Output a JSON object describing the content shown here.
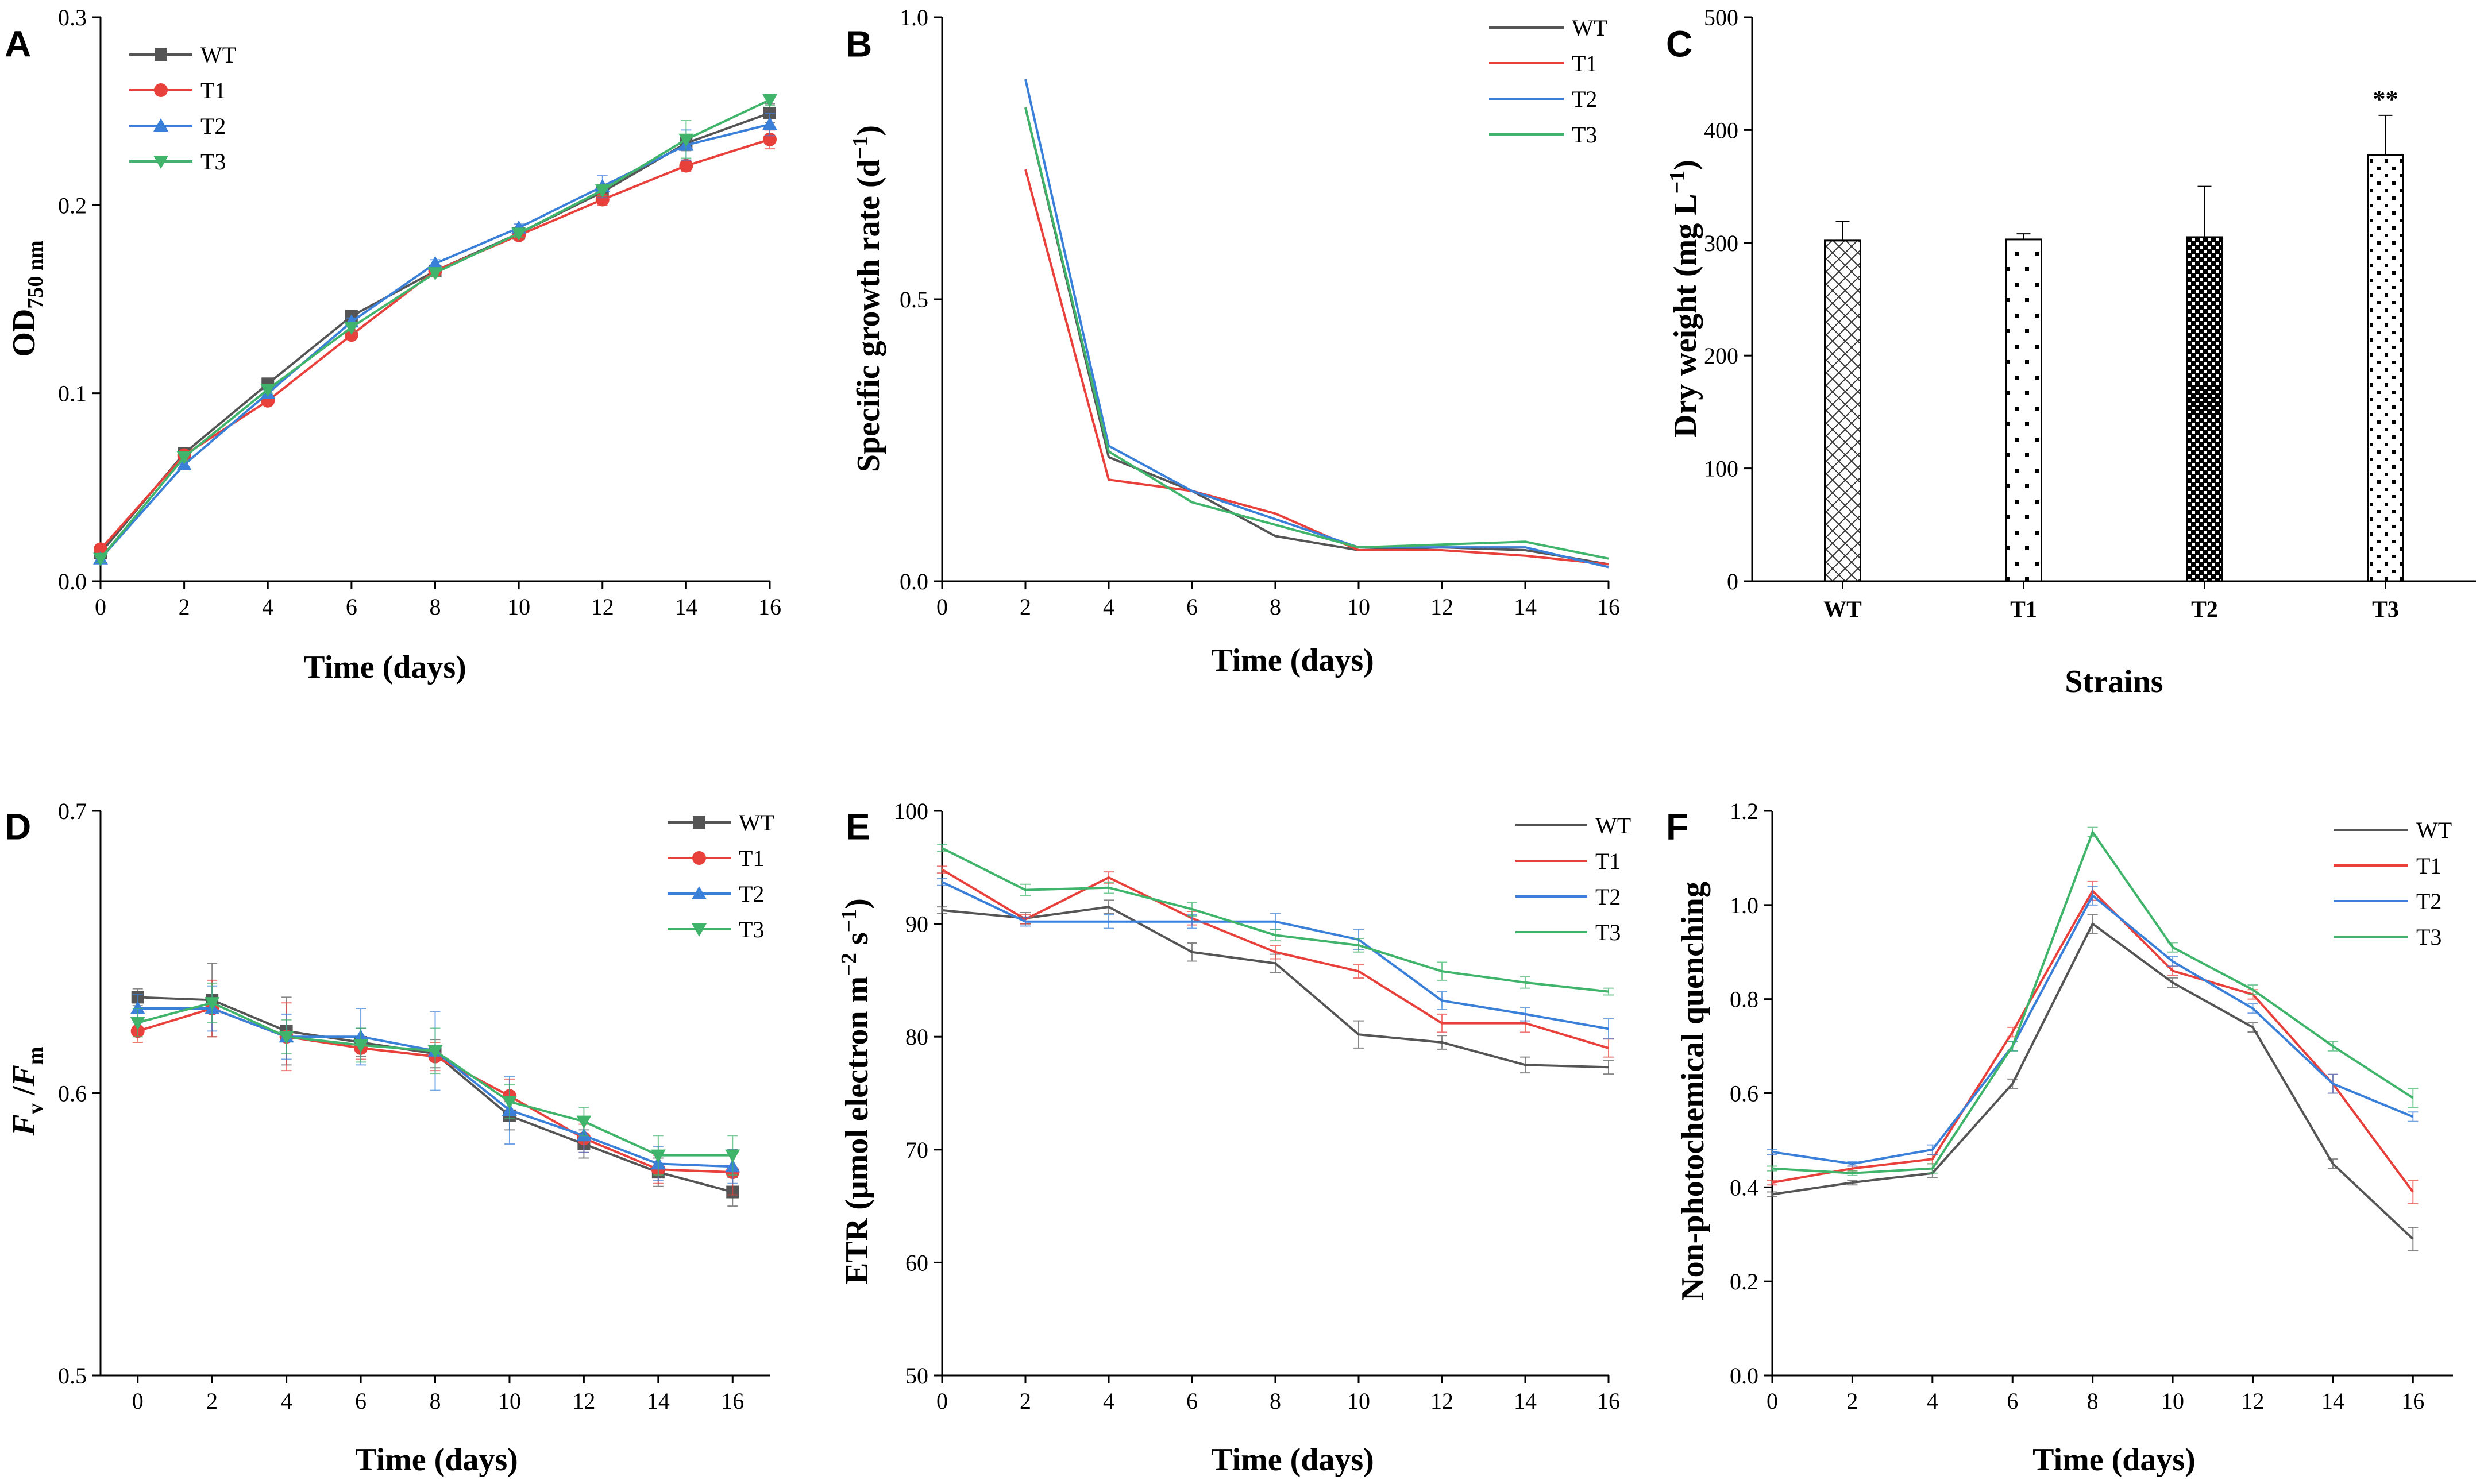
{
  "colors": {
    "WT": "#555555",
    "T1": "#e8413c",
    "T2": "#3a7fd8",
    "T3": "#3fb46a"
  },
  "chart_data": [
    {
      "panel": "A",
      "type": "line",
      "xlabel": "Time (days)",
      "ylabel": "OD",
      "ylabel_sub": "750 nm",
      "x": [
        0,
        2,
        4,
        6,
        8,
        10,
        12,
        14,
        16
      ],
      "xticks": [
        "0",
        "2",
        "4",
        "6",
        "8",
        "10",
        "12",
        "14",
        "16"
      ],
      "xlim": [
        0,
        16
      ],
      "ylim": [
        0,
        0.3
      ],
      "yticks": [
        "0.0",
        "0.1",
        "0.2",
        "0.3"
      ],
      "markers": true,
      "error_bars": true,
      "legend": [
        "WT",
        "T1",
        "T2",
        "T3"
      ],
      "series": [
        {
          "name": "WT",
          "marker": "square",
          "values": [
            0.015,
            0.068,
            0.105,
            0.141,
            0.165,
            0.185,
            0.207,
            0.233,
            0.249
          ],
          "err": [
            0.002,
            0.002,
            0.002,
            0.002,
            0.002,
            0.002,
            0.003,
            0.004,
            0.005
          ]
        },
        {
          "name": "T1",
          "marker": "circle",
          "values": [
            0.017,
            0.067,
            0.096,
            0.131,
            0.165,
            0.184,
            0.203,
            0.221,
            0.235
          ],
          "err": [
            0.002,
            0.002,
            0.002,
            0.002,
            0.002,
            0.002,
            0.003,
            0.003,
            0.005
          ]
        },
        {
          "name": "T2",
          "marker": "triangle-up",
          "values": [
            0.012,
            0.062,
            0.1,
            0.138,
            0.169,
            0.188,
            0.21,
            0.232,
            0.243
          ],
          "err": [
            0.002,
            0.002,
            0.002,
            0.002,
            0.002,
            0.002,
            0.006,
            0.008,
            0.006
          ]
        },
        {
          "name": "T3",
          "marker": "triangle-down",
          "values": [
            0.012,
            0.066,
            0.102,
            0.135,
            0.164,
            0.185,
            0.208,
            0.235,
            0.256
          ],
          "err": [
            0.002,
            0.002,
            0.002,
            0.002,
            0.002,
            0.002,
            0.003,
            0.01,
            0.003
          ]
        }
      ]
    },
    {
      "panel": "B",
      "type": "line",
      "xlabel": "Time (days)",
      "ylabel": "Specific growth rate (d",
      "ylabel_sup": "−1",
      "ylabel_end": ")",
      "x": [
        2,
        4,
        6,
        8,
        10,
        12,
        14,
        16
      ],
      "xticks": [
        "0",
        "2",
        "4",
        "6",
        "8",
        "10",
        "12",
        "14",
        "16"
      ],
      "xlim": [
        0,
        16
      ],
      "ylim": [
        0,
        1.0
      ],
      "yticks": [
        "0.0",
        "0.5",
        "1.0"
      ],
      "markers": false,
      "error_bars": false,
      "legend": [
        "WT",
        "T1",
        "T2",
        "T3"
      ],
      "series": [
        {
          "name": "WT",
          "values": [
            0.84,
            0.22,
            0.16,
            0.08,
            0.055,
            0.06,
            0.055,
            0.03
          ]
        },
        {
          "name": "T1",
          "values": [
            0.73,
            0.18,
            0.16,
            0.12,
            0.055,
            0.055,
            0.045,
            0.03
          ]
        },
        {
          "name": "T2",
          "values": [
            0.89,
            0.24,
            0.16,
            0.11,
            0.06,
            0.06,
            0.06,
            0.025
          ]
        },
        {
          "name": "T3",
          "values": [
            0.84,
            0.23,
            0.14,
            0.1,
            0.06,
            0.065,
            0.07,
            0.04
          ]
        }
      ]
    },
    {
      "panel": "C",
      "type": "bar",
      "xlabel": "Strains",
      "ylabel": "Dry weight (mg L",
      "ylabel_sup": "−1",
      "ylabel_end": ")",
      "categories": [
        "WT",
        "T1",
        "T2",
        "T3"
      ],
      "values": [
        302,
        303,
        305,
        378
      ],
      "err": [
        17,
        5,
        45,
        35
      ],
      "patterns": [
        "crosshatch",
        "sparse-dots",
        "dense-checker",
        "medium-dots"
      ],
      "ylim": [
        0,
        500
      ],
      "yticks": [
        "0",
        "100",
        "200",
        "300",
        "400",
        "500"
      ],
      "annotation": {
        "category": "T3",
        "text": "**"
      }
    },
    {
      "panel": "D",
      "type": "line",
      "xlabel": "Time (days)",
      "ylabel": "F",
      "ylabel_parts": [
        "v",
        "/",
        "F",
        "m"
      ],
      "x": [
        0,
        2,
        4,
        6,
        8,
        10,
        12,
        14,
        16
      ],
      "xticks": [
        "0",
        "2",
        "4",
        "6",
        "8",
        "10",
        "12",
        "14",
        "16"
      ],
      "xlim": [
        -1,
        17
      ],
      "ylim": [
        0.5,
        0.7
      ],
      "yticks": [
        "0.5",
        "0.6",
        "0.7"
      ],
      "markers": true,
      "error_bars": true,
      "legend": [
        "WT",
        "T1",
        "T2",
        "T3"
      ],
      "series": [
        {
          "name": "WT",
          "marker": "square",
          "values": [
            0.634,
            0.633,
            0.622,
            0.618,
            0.614,
            0.592,
            0.582,
            0.572,
            0.565
          ],
          "err": [
            0.003,
            0.013,
            0.012,
            0.005,
            0.005,
            0.005,
            0.005,
            0.005,
            0.005
          ]
        },
        {
          "name": "T1",
          "marker": "circle",
          "values": [
            0.622,
            0.63,
            0.62,
            0.616,
            0.613,
            0.599,
            0.584,
            0.573,
            0.572
          ],
          "err": [
            0.004,
            0.01,
            0.012,
            0.004,
            0.005,
            0.006,
            0.005,
            0.005,
            0.008
          ]
        },
        {
          "name": "T2",
          "marker": "triangle-up",
          "values": [
            0.63,
            0.63,
            0.62,
            0.62,
            0.615,
            0.594,
            0.585,
            0.575,
            0.574
          ],
          "err": [
            0.005,
            0.008,
            0.008,
            0.01,
            0.014,
            0.012,
            0.006,
            0.006,
            0.006
          ]
        },
        {
          "name": "T3",
          "marker": "triangle-down",
          "values": [
            0.625,
            0.632,
            0.62,
            0.617,
            0.615,
            0.597,
            0.59,
            0.578,
            0.578
          ],
          "err": [
            0.005,
            0.007,
            0.006,
            0.006,
            0.008,
            0.006,
            0.005,
            0.007,
            0.007
          ]
        }
      ]
    },
    {
      "panel": "E",
      "type": "line",
      "xlabel": "Time (days)",
      "ylabel": "ETR (μmol electron m",
      "ylabel_sup1": "−2",
      "ylabel_mid": " s",
      "ylabel_sup2": "−1",
      "ylabel_end": ")",
      "x": [
        0,
        2,
        4,
        6,
        8,
        10,
        12,
        14,
        16
      ],
      "xticks": [
        "0",
        "2",
        "4",
        "6",
        "8",
        "10",
        "12",
        "14",
        "16"
      ],
      "xlim": [
        0,
        16
      ],
      "ylim": [
        50,
        100
      ],
      "yticks": [
        "50",
        "60",
        "70",
        "80",
        "90",
        "100"
      ],
      "markers": false,
      "error_bars": true,
      "legend": [
        "WT",
        "T1",
        "T2",
        "T3"
      ],
      "series": [
        {
          "name": "WT",
          "values": [
            91.2,
            90.5,
            91.5,
            87.5,
            86.5,
            80.2,
            79.5,
            77.5,
            77.3
          ],
          "err": [
            0.3,
            0.5,
            0.6,
            0.8,
            0.8,
            1.2,
            0.6,
            0.7,
            0.6
          ]
        },
        {
          "name": "T1",
          "values": [
            94.8,
            90.4,
            94.1,
            90.5,
            87.5,
            85.8,
            81.2,
            81.2,
            79.0
          ],
          "err": [
            0.3,
            0.4,
            0.5,
            0.6,
            0.6,
            0.6,
            0.8,
            0.8,
            0.8
          ]
        },
        {
          "name": "T2",
          "values": [
            93.7,
            90.2,
            90.2,
            90.2,
            90.2,
            88.6,
            83.2,
            82.0,
            80.7
          ],
          "err": [
            0.3,
            0.4,
            0.6,
            0.6,
            0.7,
            0.9,
            0.8,
            0.6,
            0.9
          ]
        },
        {
          "name": "T3",
          "values": [
            96.7,
            93.0,
            93.2,
            91.3,
            89.0,
            88.1,
            85.8,
            84.8,
            84.0
          ],
          "err": [
            0.3,
            0.5,
            0.5,
            0.6,
            0.5,
            0.6,
            0.8,
            0.5,
            0.3
          ]
        }
      ]
    },
    {
      "panel": "F",
      "type": "line",
      "xlabel": "Time (days)",
      "ylabel": "Non-photochemical quenching",
      "x": [
        0,
        2,
        4,
        6,
        8,
        10,
        12,
        14,
        16
      ],
      "xticks": [
        "0",
        "2",
        "4",
        "6",
        "8",
        "10",
        "12",
        "14",
        "16"
      ],
      "xlim": [
        0,
        17
      ],
      "ylim": [
        0,
        1.2
      ],
      "yticks": [
        "0.0",
        "0.2",
        "0.4",
        "0.6",
        "0.8",
        "1.0",
        "1.2"
      ],
      "markers": false,
      "error_bars": true,
      "legend": [
        "WT",
        "T1",
        "T2",
        "T3"
      ],
      "series": [
        {
          "name": "WT",
          "values": [
            0.385,
            0.41,
            0.43,
            0.62,
            0.96,
            0.835,
            0.74,
            0.45,
            0.29
          ],
          "err": [
            0.005,
            0.005,
            0.01,
            0.01,
            0.02,
            0.01,
            0.01,
            0.01,
            0.025
          ]
        },
        {
          "name": "T1",
          "values": [
            0.41,
            0.44,
            0.46,
            0.73,
            1.03,
            0.86,
            0.81,
            0.62,
            0.39
          ],
          "err": [
            0.005,
            0.005,
            0.01,
            0.01,
            0.02,
            0.01,
            0.01,
            0.02,
            0.025
          ]
        },
        {
          "name": "T2",
          "values": [
            0.475,
            0.45,
            0.48,
            0.7,
            1.02,
            0.88,
            0.78,
            0.62,
            0.55
          ],
          "err": [
            0.005,
            0.005,
            0.01,
            0.01,
            0.02,
            0.01,
            0.01,
            0.02,
            0.01
          ]
        },
        {
          "name": "T3",
          "values": [
            0.44,
            0.43,
            0.44,
            0.7,
            1.155,
            0.91,
            0.82,
            0.7,
            0.59
          ],
          "err": [
            0.005,
            0.005,
            0.01,
            0.01,
            0.01,
            0.01,
            0.01,
            0.01,
            0.02
          ]
        }
      ]
    }
  ]
}
